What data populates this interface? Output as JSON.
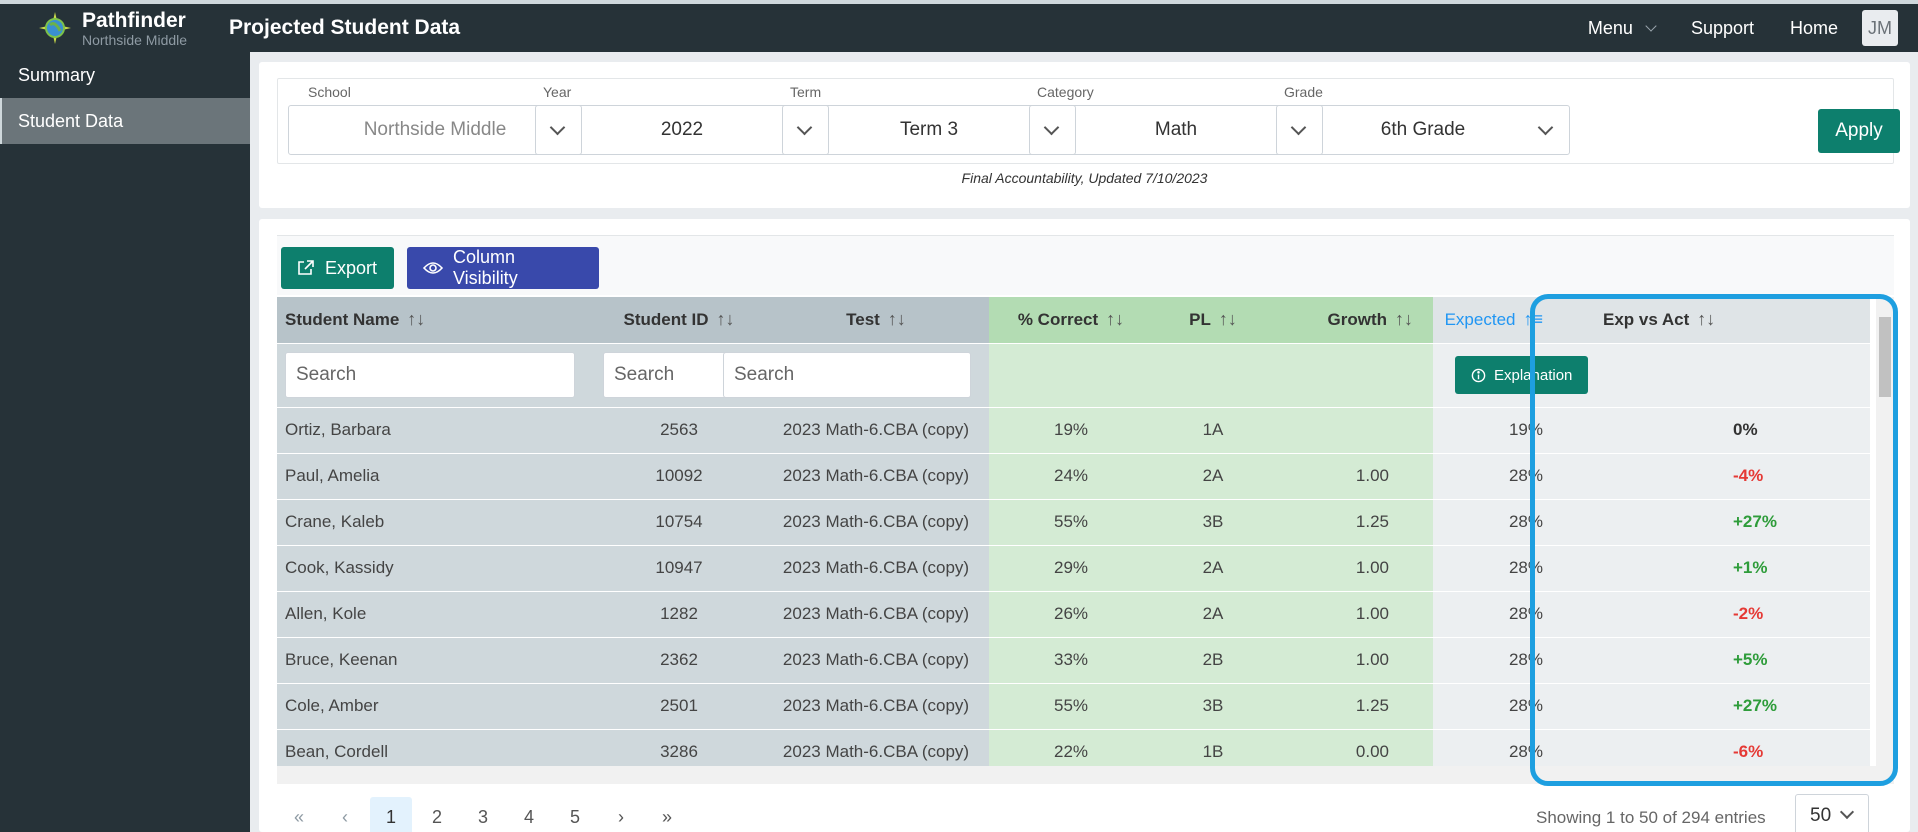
{
  "brand": {
    "name": "Pathfinder",
    "school": "Northside Middle"
  },
  "header": {
    "title": "Projected Student Data",
    "menu_label": "Menu",
    "support_label": "Support",
    "home_label": "Home",
    "avatar_initials": "JM"
  },
  "sidebar": {
    "items": [
      {
        "label": "Summary",
        "active": false
      },
      {
        "label": "Student Data",
        "active": true
      }
    ]
  },
  "filters": {
    "school": {
      "label": "School",
      "value": "Northside Middle"
    },
    "year": {
      "label": "Year",
      "value": "2022"
    },
    "term": {
      "label": "Term",
      "value": "Term 3"
    },
    "category": {
      "label": "Category",
      "value": "Math"
    },
    "grade": {
      "label": "Grade",
      "value": "6th Grade"
    },
    "apply_label": "Apply",
    "note": "Final Accountability, Updated 7/10/2023"
  },
  "toolbar": {
    "export_label": "Export",
    "column_visibility_label": "Column Visibility"
  },
  "table": {
    "headers": {
      "student_name": "Student Name",
      "student_id": "Student ID",
      "test": "Test",
      "pct_correct": "% Correct",
      "pl": "PL",
      "growth": "Growth",
      "expected": "Expected",
      "exp_vs_act": "Exp vs Act"
    },
    "search_placeholder": "Search",
    "explanation_label": "Explanation",
    "rows": [
      {
        "name": "Ortiz, Barbara",
        "id": "2563",
        "test": "2023 Math-6.CBA (copy)",
        "pct": "19%",
        "pl": "1A",
        "growth": "",
        "expected": "19%",
        "diff": "0%",
        "trend": "neutral"
      },
      {
        "name": "Paul, Amelia",
        "id": "10092",
        "test": "2023 Math-6.CBA (copy)",
        "pct": "24%",
        "pl": "2A",
        "growth": "1.00",
        "expected": "28%",
        "diff": "-4%",
        "trend": "negative"
      },
      {
        "name": "Crane, Kaleb",
        "id": "10754",
        "test": "2023 Math-6.CBA (copy)",
        "pct": "55%",
        "pl": "3B",
        "growth": "1.25",
        "expected": "28%",
        "diff": "+27%",
        "trend": "positive"
      },
      {
        "name": "Cook, Kassidy",
        "id": "10947",
        "test": "2023 Math-6.CBA (copy)",
        "pct": "29%",
        "pl": "2A",
        "growth": "1.00",
        "expected": "28%",
        "diff": "+1%",
        "trend": "positive"
      },
      {
        "name": "Allen, Kole",
        "id": "1282",
        "test": "2023 Math-6.CBA (copy)",
        "pct": "26%",
        "pl": "2A",
        "growth": "1.00",
        "expected": "28%",
        "diff": "-2%",
        "trend": "negative"
      },
      {
        "name": "Bruce, Keenan",
        "id": "2362",
        "test": "2023 Math-6.CBA (copy)",
        "pct": "33%",
        "pl": "2B",
        "growth": "1.00",
        "expected": "28%",
        "diff": "+5%",
        "trend": "positive"
      },
      {
        "name": "Cole, Amber",
        "id": "2501",
        "test": "2023 Math-6.CBA (copy)",
        "pct": "55%",
        "pl": "3B",
        "growth": "1.25",
        "expected": "28%",
        "diff": "+27%",
        "trend": "positive"
      },
      {
        "name": "Bean, Cordell",
        "id": "3286",
        "test": "2023 Math-6.CBA (copy)",
        "pct": "22%",
        "pl": "1B",
        "growth": "0.00",
        "expected": "28%",
        "diff": "-6%",
        "trend": "negative"
      }
    ]
  },
  "pagination": {
    "first": "«",
    "prev": "‹",
    "pages": [
      "1",
      "2",
      "3",
      "4",
      "5"
    ],
    "current": "1",
    "next": "›",
    "last": "»",
    "entries_text": "Showing 1 to 50 of 294 entries",
    "page_size": "50"
  },
  "colors": {
    "dark_bg": "#263238",
    "accent_green": "#0d7f6d",
    "accent_indigo": "#3949ab",
    "highlight_blue": "#1e9fe0",
    "positive": "#2e9c3a",
    "negative": "#e53935"
  },
  "icons": {
    "export": "external-link-icon",
    "column_visibility": "eye-icon",
    "explanation": "info-circle-icon",
    "sort": "sort-arrows-icon",
    "dropdown": "chevron-down-icon"
  }
}
